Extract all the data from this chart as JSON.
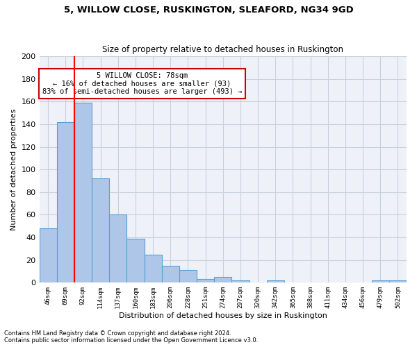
{
  "title": "5, WILLOW CLOSE, RUSKINGTON, SLEAFORD, NG34 9GD",
  "subtitle": "Size of property relative to detached houses in Ruskington",
  "xlabel_bottom": "Distribution of detached houses by size in Ruskington",
  "ylabel": "Number of detached properties",
  "bar_color": "#aec6e8",
  "bar_edge_color": "#5a9fd4",
  "grid_color": "#c8d0dc",
  "bg_color": "#eef2f8",
  "categories": [
    "46sqm",
    "69sqm",
    "92sqm",
    "114sqm",
    "137sqm",
    "160sqm",
    "183sqm",
    "206sqm",
    "228sqm",
    "251sqm",
    "274sqm",
    "297sqm",
    "320sqm",
    "342sqm",
    "365sqm",
    "388sqm",
    "411sqm",
    "434sqm",
    "456sqm",
    "479sqm",
    "502sqm"
  ],
  "values": [
    48,
    142,
    159,
    92,
    60,
    39,
    25,
    15,
    11,
    3,
    5,
    2,
    0,
    2,
    0,
    0,
    0,
    0,
    0,
    2,
    2
  ],
  "ylim": [
    0,
    200
  ],
  "yticks": [
    0,
    20,
    40,
    60,
    80,
    100,
    120,
    140,
    160,
    180,
    200
  ],
  "red_line_x": 1.5,
  "annotation_title": "5 WILLOW CLOSE: 78sqm",
  "annotation_line1": "← 16% of detached houses are smaller (93)",
  "annotation_line2": "83% of semi-detached houses are larger (493) →",
  "annotation_box_color": "#cc0000",
  "footnote1": "Contains HM Land Registry data © Crown copyright and database right 2024.",
  "footnote2": "Contains public sector information licensed under the Open Government Licence v3.0."
}
